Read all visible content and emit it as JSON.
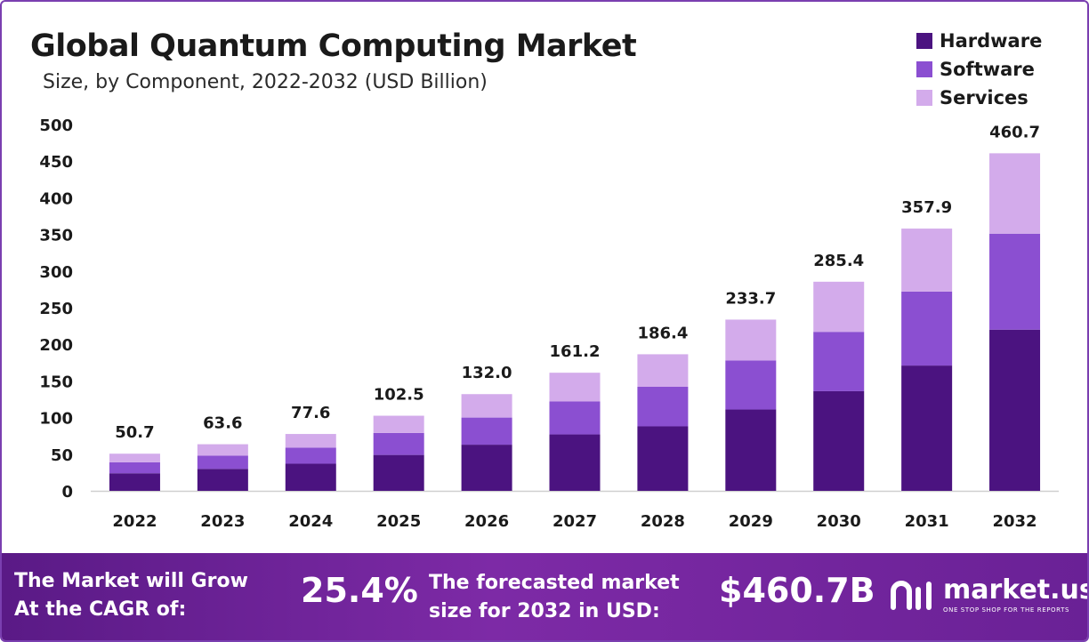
{
  "title": "Global Quantum Computing Market",
  "subtitle": "Size, by Component, 2022-2032 (USD Billion)",
  "colors": {
    "hardware": "#4b1380",
    "software": "#8b4fd1",
    "services": "#d3abeb",
    "footer": "#6a2196"
  },
  "legend": [
    {
      "label": "Hardware",
      "color": "#4b1380"
    },
    {
      "label": "Software",
      "color": "#8b4fd1"
    },
    {
      "label": "Services",
      "color": "#d3abeb"
    }
  ],
  "chart_data": {
    "type": "bar",
    "stacked": true,
    "categories": [
      "2022",
      "2023",
      "2024",
      "2025",
      "2026",
      "2027",
      "2028",
      "2029",
      "2030",
      "2031",
      "2032"
    ],
    "series": [
      {
        "name": "Hardware",
        "values": [
          24,
          30,
          37,
          49,
          63,
          77,
          88,
          111,
          136,
          171,
          220
        ]
      },
      {
        "name": "Software",
        "values": [
          15,
          18,
          22,
          30,
          37,
          45,
          54,
          67,
          81,
          101,
          131
        ]
      },
      {
        "name": "Services",
        "values": [
          11.7,
          15.6,
          18.6,
          23.5,
          32.0,
          39.2,
          44.4,
          55.7,
          68.4,
          85.9,
          109.7
        ]
      }
    ],
    "totals": [
      "50.7",
      "63.6",
      "77.6",
      "102.5",
      "132.0",
      "161.2",
      "186.4",
      "233.7",
      "285.4",
      "357.9",
      "460.7"
    ],
    "yticks": [
      "0",
      "50",
      "100",
      "150",
      "200",
      "250",
      "300",
      "350",
      "400",
      "450",
      "500"
    ],
    "ylim": [
      0,
      500
    ],
    "title": "Global Quantum Computing Market",
    "xlabel": "",
    "ylabel": "",
    "grid": false,
    "legend_position": "top-right"
  },
  "footer": {
    "cagr_line1": "The Market will Grow",
    "cagr_line2": "At the CAGR of:",
    "cagr_value": "25.4%",
    "forecast_line1": "The forecasted market",
    "forecast_line2": "size for 2032 in USD:",
    "forecast_value": "$460.7B",
    "brand_name": "market.us",
    "brand_tagline": "ONE STOP SHOP FOR THE REPORTS"
  }
}
